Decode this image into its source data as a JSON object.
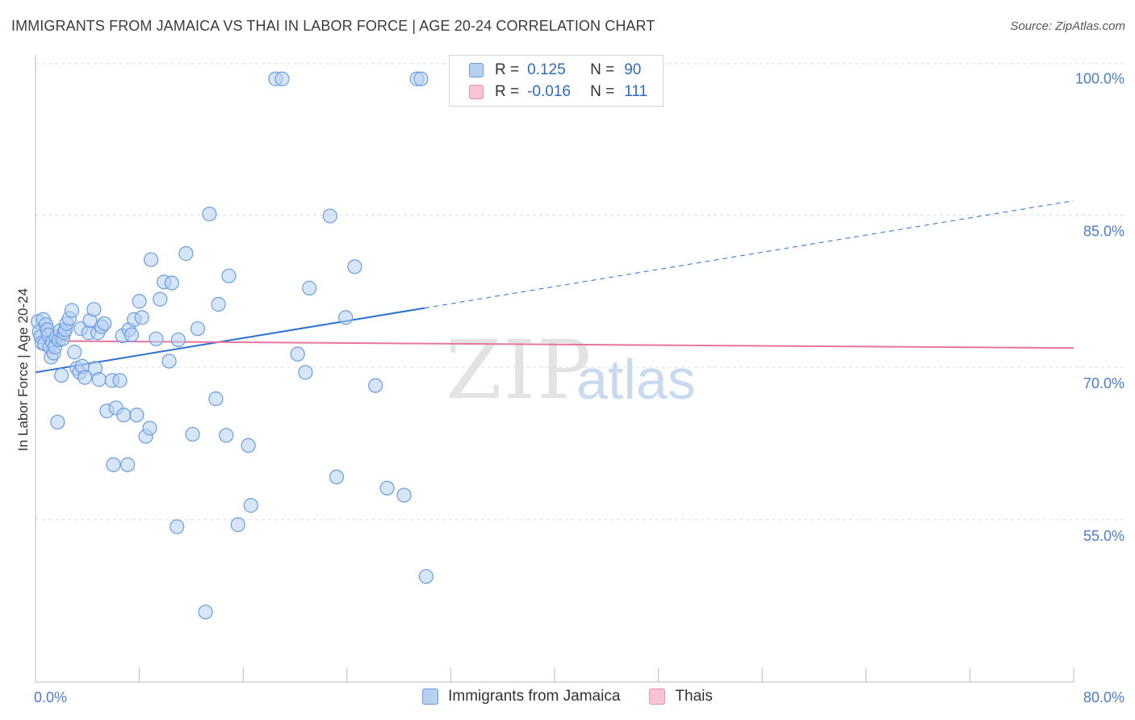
{
  "title": "IMMIGRANTS FROM JAMAICA VS THAI IN LABOR FORCE | AGE 20-24 CORRELATION CHART",
  "source": "Source: ZipAtlas.com",
  "watermark": "ZIP",
  "watermark2": "atlas",
  "colors": {
    "blue_fill": "#b6d0f2",
    "blue_stroke": "#6a9de0",
    "blue_line": "#2b6fd1",
    "pink_fill": "#f7c3d5",
    "pink_stroke": "#e890b0",
    "pink_line": "#e8759c",
    "grid": "#dddddd",
    "tick_text": "#4a7cc9"
  },
  "legend": {
    "r_label": "R =",
    "n_label": "N =",
    "rows": [
      {
        "r": "0.125",
        "n": "90"
      },
      {
        "r": "-0.016",
        "n": "111"
      }
    ]
  },
  "bottom_legend": [
    "Immigrants from Jamaica",
    "Thais"
  ],
  "chart_data": {
    "type": "scatter",
    "ylabel": "In Labor Force | Age 20-24",
    "xlim": [
      0,
      80
    ],
    "ylim": [
      40.6,
      103
    ],
    "x_tick_labels": [
      {
        "value": 0,
        "label": "0.0%"
      },
      {
        "value": 80,
        "label": "80.0%"
      }
    ],
    "y_tick_labels": [
      {
        "value": 100,
        "label": "100.0%"
      },
      {
        "value": 85,
        "label": "85.0%"
      },
      {
        "value": 70,
        "label": "70.0%"
      },
      {
        "value": 55,
        "label": "55.0%"
      }
    ],
    "y_gridlines": [
      101.5,
      86.6,
      71.6,
      56.6
    ],
    "legend_position": "top-center",
    "series": [
      {
        "name": "Immigrants from Jamaica",
        "color": "#6a9de0",
        "trend": {
          "x0": 0,
          "y0": 71.1,
          "x1": 80,
          "y1": 88.0,
          "solid_until_x": 30
        },
        "points": [
          [
            0.2,
            76.1
          ],
          [
            0.3,
            75.1
          ],
          [
            0.4,
            74.6
          ],
          [
            0.5,
            74.0
          ],
          [
            0.6,
            76.3
          ],
          [
            0.7,
            73.9
          ],
          [
            0.8,
            75.8
          ],
          [
            0.9,
            75.3
          ],
          [
            1.0,
            74.8
          ],
          [
            1.1,
            73.6
          ],
          [
            1.2,
            72.6
          ],
          [
            1.3,
            74.1
          ],
          [
            1.4,
            73.0
          ],
          [
            1.5,
            73.6
          ],
          [
            1.6,
            74.6
          ],
          [
            1.7,
            66.2
          ],
          [
            1.8,
            74.3
          ],
          [
            1.9,
            75.2
          ],
          [
            2.0,
            70.8
          ],
          [
            2.1,
            74.4
          ],
          [
            2.2,
            75.0
          ],
          [
            2.3,
            75.3
          ],
          [
            2.4,
            75.9
          ],
          [
            2.6,
            76.4
          ],
          [
            2.8,
            77.2
          ],
          [
            3.0,
            73.1
          ],
          [
            3.2,
            71.5
          ],
          [
            3.4,
            71.1
          ],
          [
            3.5,
            75.4
          ],
          [
            3.6,
            71.7
          ],
          [
            3.8,
            70.6
          ],
          [
            4.1,
            75.0
          ],
          [
            4.2,
            76.2
          ],
          [
            4.5,
            77.3
          ],
          [
            4.6,
            71.5
          ],
          [
            4.8,
            75.0
          ],
          [
            4.9,
            70.4
          ],
          [
            5.1,
            75.6
          ],
          [
            5.3,
            75.9
          ],
          [
            5.5,
            67.3
          ],
          [
            5.9,
            70.3
          ],
          [
            6.0,
            62.0
          ],
          [
            6.2,
            67.6
          ],
          [
            6.5,
            70.3
          ],
          [
            6.7,
            74.7
          ],
          [
            6.8,
            66.9
          ],
          [
            7.1,
            62.0
          ],
          [
            7.2,
            75.3
          ],
          [
            7.4,
            74.8
          ],
          [
            7.6,
            76.3
          ],
          [
            7.8,
            66.9
          ],
          [
            8.0,
            78.1
          ],
          [
            8.2,
            76.5
          ],
          [
            8.5,
            64.8
          ],
          [
            8.8,
            65.6
          ],
          [
            8.9,
            82.2
          ],
          [
            9.3,
            74.4
          ],
          [
            9.6,
            78.3
          ],
          [
            9.9,
            80.0
          ],
          [
            10.3,
            72.2
          ],
          [
            10.5,
            79.9
          ],
          [
            10.9,
            55.9
          ],
          [
            11.0,
            74.3
          ],
          [
            11.6,
            82.8
          ],
          [
            12.1,
            65.0
          ],
          [
            12.5,
            75.4
          ],
          [
            13.1,
            47.5
          ],
          [
            13.4,
            86.7
          ],
          [
            13.9,
            68.5
          ],
          [
            14.1,
            77.8
          ],
          [
            14.7,
            64.9
          ],
          [
            14.9,
            80.6
          ],
          [
            15.6,
            56.1
          ],
          [
            16.4,
            63.9
          ],
          [
            16.6,
            58.0
          ],
          [
            18.5,
            100.0
          ],
          [
            19.0,
            100.0
          ],
          [
            20.2,
            72.9
          ],
          [
            20.8,
            71.1
          ],
          [
            21.1,
            79.4
          ],
          [
            22.7,
            86.5
          ],
          [
            23.2,
            60.8
          ],
          [
            23.9,
            76.5
          ],
          [
            24.6,
            81.5
          ],
          [
            26.2,
            69.8
          ],
          [
            27.1,
            59.7
          ],
          [
            28.4,
            59.0
          ],
          [
            29.4,
            100.0
          ],
          [
            29.7,
            100.0
          ],
          [
            30.1,
            51.0
          ]
        ]
      },
      {
        "name": "Thais",
        "color": "#e890b0",
        "trend": {
          "x0": 0,
          "y0": 74.2,
          "x1": 80,
          "y1": 73.5
        }
      }
    ]
  }
}
